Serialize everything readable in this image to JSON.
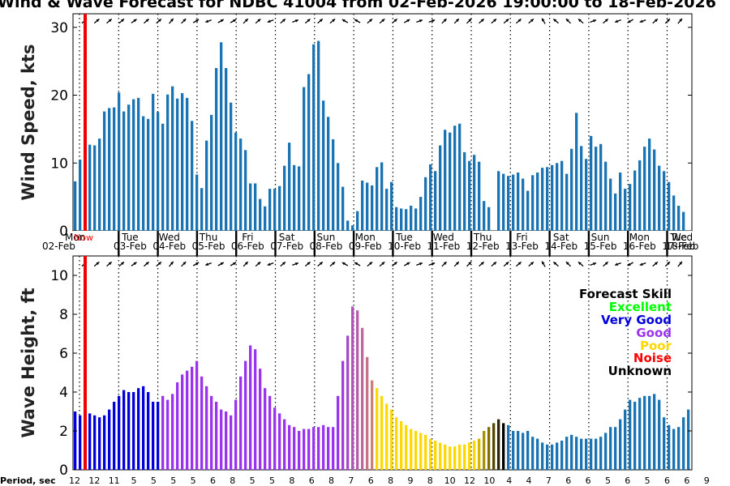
{
  "title": "Wind & Wave Forecast for NDBC 41004 from 02-Feb-2026 19:00:00 to 18-Feb-2026",
  "now_label": "Now",
  "period_label": "Period, sec",
  "colors": {
    "bar_default": "#1a74b4",
    "now_line": "#ee0000",
    "skill_excellent": "#00ff00",
    "skill_very_good": "#0000dd",
    "skill_good": "#9933ee",
    "skill_good_to_poor": "#cc7f77",
    "skill_poor": "#ffd800",
    "skill_poor_to_unknown": "#4a3c10",
    "skill_noise": "#ff0000",
    "skill_unknown": "#000000"
  },
  "days": [
    {
      "dow": "Mon",
      "date": "02-Feb"
    },
    {
      "dow": "Tue",
      "date": "03-Feb"
    },
    {
      "dow": "Wed",
      "date": "04-Feb"
    },
    {
      "dow": "Thu",
      "date": "05-Feb"
    },
    {
      "dow": "Fri",
      "date": "06-Feb"
    },
    {
      "dow": "Sat",
      "date": "07-Feb"
    },
    {
      "dow": "Sun",
      "date": "08-Feb"
    },
    {
      "dow": "Mon",
      "date": "09-Feb"
    },
    {
      "dow": "Tue",
      "date": "10-Feb"
    },
    {
      "dow": "Wed",
      "date": "11-Feb"
    },
    {
      "dow": "Thu",
      "date": "12-Feb"
    },
    {
      "dow": "Fri",
      "date": "13-Feb"
    },
    {
      "dow": "Sat",
      "date": "14-Feb"
    },
    {
      "dow": "Sun",
      "date": "15-Feb"
    },
    {
      "dow": "Mon",
      "date": "16-Feb"
    },
    {
      "dow": "Tue",
      "date": "17-Feb"
    },
    {
      "dow": "Wed",
      "date": "18-Feb"
    }
  ],
  "legend": {
    "title": "Forecast Skill",
    "items": [
      {
        "label": "Excellent",
        "color": "#00ff00"
      },
      {
        "label": "Very Good",
        "color": "#0000dd"
      },
      {
        "label": "Good",
        "color": "#9933ee"
      },
      {
        "label": "Poor",
        "color": "#ffd800"
      },
      {
        "label": "Noise",
        "color": "#ff0000"
      },
      {
        "label": "Unknown",
        "color": "#000000"
      }
    ]
  },
  "periods": [
    "12",
    "12",
    "11",
    "5",
    "5",
    "5",
    "5",
    "6",
    "8",
    "5",
    "5",
    "8",
    "6",
    "8",
    "7",
    "6",
    "8",
    "9",
    "8",
    "10",
    "12",
    "10",
    "4",
    "4",
    "7",
    "6",
    "6",
    "5",
    "6",
    "5",
    "6",
    "6",
    "9"
  ],
  "chart_data": [
    {
      "type": "bar",
      "title": "Wind Speed",
      "ylabel": "Wind Speed, kts",
      "ylim": [
        0,
        32
      ],
      "yticks": [
        0,
        10,
        20,
        30
      ],
      "now_index": 3.5,
      "values": [
        7.3,
        10.5,
        13.2,
        12.7,
        12.6,
        13.6,
        17.6,
        18.1,
        18.2,
        20.4,
        17.6,
        18.6,
        19.4,
        19.6,
        16.9,
        16.5,
        20.2,
        17.5,
        15.8,
        20.1,
        21.3,
        19.5,
        20.3,
        19.6,
        16.2,
        8.3,
        6.3,
        13.3,
        17.1,
        24.0,
        27.8,
        24.0,
        18.9,
        14.5,
        13.6,
        11.9,
        7.0,
        7.0,
        4.7,
        3.6,
        6.2,
        6.2,
        6.6,
        9.6,
        13.0,
        9.7,
        9.5,
        21.2,
        23.1,
        27.5,
        28.0,
        19.2,
        16.8,
        13.5,
        10.0,
        6.5,
        1.5,
        0.8,
        2.9,
        7.4,
        7.1,
        6.7,
        9.4,
        10.1,
        6.2,
        7.2,
        3.5,
        3.3,
        3.2,
        3.7,
        3.3,
        5.0,
        7.9,
        9.8,
        8.8,
        12.6,
        14.9,
        14.5,
        15.5,
        15.8,
        11.6,
        10.3,
        11.2,
        10.2,
        4.4,
        3.5,
        0.0,
        8.8,
        8.4,
        8.1,
        8.3,
        8.6,
        7.7,
        5.9,
        8.2,
        8.6,
        9.3,
        9.4,
        9.7,
        10.0,
        10.3,
        8.4,
        12.1,
        17.4,
        12.5,
        10.6,
        14.0,
        12.4,
        12.8,
        10.2,
        7.7,
        5.5,
        8.6,
        6.2,
        6.9,
        8.9,
        10.4,
        12.4,
        13.6,
        12.0,
        9.6,
        8.8,
        7.2,
        5.2,
        3.7,
        2.8
      ],
      "xlabels": [
        "Mon 02-Feb",
        "Tue 03-Feb",
        "Wed 04-Feb",
        "Thu 05-Feb",
        "Fri 06-Feb",
        "Sat 07-Feb",
        "Sun 08-Feb",
        "Mon 09-Feb",
        "Tue 10-Feb",
        "Wed 11-Feb",
        "Thu 12-Feb",
        "Fri 13-Feb",
        "Sat 14-Feb",
        "Sun 15-Feb",
        "Mon 16-Feb",
        "Tue 17-Feb",
        "Wed 18-Feb"
      ],
      "direction_arrows": [
        40,
        40,
        40,
        40,
        35,
        40,
        40,
        50,
        45,
        30,
        200,
        30,
        30,
        45,
        40,
        200,
        40,
        20,
        40,
        40,
        40,
        150,
        150,
        40,
        40,
        40,
        30,
        20,
        20,
        45,
        45,
        45,
        40,
        40,
        40,
        40,
        40,
        120,
        140,
        135,
        140,
        20,
        40,
        200,
        210,
        200,
        40,
        45,
        50,
        200
      ]
    },
    {
      "type": "bar",
      "title": "Wave Height",
      "ylabel": "Wave Height, ft",
      "ylim": [
        0,
        11
      ],
      "yticks": [
        0,
        2,
        4,
        6,
        8,
        10
      ],
      "now_index": 3.5,
      "values": [
        3.0,
        2.8,
        2.8,
        2.9,
        2.8,
        2.7,
        2.8,
        3.1,
        3.5,
        3.8,
        4.1,
        4.0,
        4.0,
        4.2,
        4.3,
        4.0,
        3.5,
        3.5,
        3.8,
        3.6,
        3.9,
        4.5,
        4.9,
        5.1,
        5.3,
        5.6,
        4.8,
        4.3,
        3.8,
        3.5,
        3.1,
        3.0,
        2.8,
        3.6,
        4.8,
        5.6,
        6.4,
        6.2,
        5.2,
        4.2,
        3.8,
        3.2,
        2.9,
        2.6,
        2.3,
        2.2,
        2.0,
        2.1,
        2.1,
        2.2,
        2.2,
        2.3,
        2.2,
        2.2,
        3.8,
        5.6,
        6.9,
        8.4,
        8.2,
        7.3,
        5.8,
        4.6,
        4.2,
        3.8,
        3.4,
        3.1,
        2.7,
        2.5,
        2.3,
        2.1,
        2.0,
        1.9,
        1.8,
        1.6,
        1.5,
        1.4,
        1.3,
        1.2,
        1.2,
        1.3,
        1.3,
        1.4,
        1.5,
        1.6,
        2.0,
        2.2,
        2.4,
        2.6,
        2.4,
        2.3,
        2.0,
        2.0,
        1.9,
        2.0,
        1.7,
        1.6,
        1.4,
        1.3,
        1.3,
        1.4,
        1.5,
        1.7,
        1.8,
        1.7,
        1.6,
        1.6,
        1.6,
        1.6,
        1.7,
        1.9,
        2.2,
        2.2,
        2.6,
        3.1,
        3.6,
        3.5,
        3.7,
        3.8,
        3.8,
        3.9,
        3.6,
        2.7,
        2.3,
        2.1,
        2.2,
        2.7,
        3.1,
        3.8,
        3.7,
        3.4,
        3.0,
        2.7,
        2.5,
        2.3,
        2.2
      ],
      "skill_bands": [
        {
          "from": 0,
          "to": 54,
          "skill": "Very Good then Good",
          "colors": [
            "#0000dd",
            "#9933ee"
          ]
        },
        {
          "from": 54,
          "to": 62,
          "skill": "Good to Poor",
          "colors": [
            "#9933ee",
            "#cc7f77"
          ]
        },
        {
          "from": 62,
          "to": 82,
          "skill": "Poor",
          "colors": [
            "#ffd800"
          ]
        },
        {
          "from": 82,
          "to": 89,
          "skill": "Poor to Unknown",
          "colors": [
            "#ffd800",
            "#000000"
          ]
        },
        {
          "from": 89,
          "to": 132,
          "skill": "Default",
          "colors": [
            "#1a74b4"
          ]
        }
      ]
    }
  ]
}
